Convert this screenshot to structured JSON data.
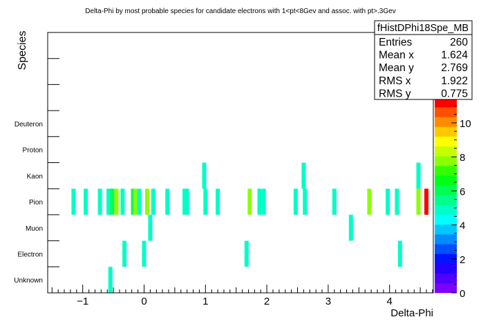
{
  "chart_data": {
    "type": "heatmap",
    "title": "Delta-Phi by most probable species for candidate electrons with 1<pt<8Gev and assoc. with pt>.3Gev",
    "xlabel": "Delta-Phi",
    "ylabel": "Species",
    "xlim": [
      -1.5708,
      4.7124
    ],
    "x_ticks": [
      -1,
      0,
      1,
      2,
      3,
      4
    ],
    "x_tick_labels": [
      "−1",
      "0",
      "1",
      "2",
      "3",
      "4"
    ],
    "categories": [
      "Unknown",
      "Electron",
      "Muon",
      "Pion",
      "Kaon",
      "Proton",
      "Deuteron",
      "",
      "",
      ""
    ],
    "z_range": [
      0,
      11.5
    ],
    "z_ticks": [
      0,
      2,
      4,
      6,
      8,
      10
    ],
    "cells": [
      {
        "x": -1.15,
        "y": "Pion",
        "z": 5
      },
      {
        "x": -0.95,
        "y": "Pion",
        "z": 5
      },
      {
        "x": -0.72,
        "y": "Pion",
        "z": 5
      },
      {
        "x": -0.58,
        "y": "Pion",
        "z": 5
      },
      {
        "x": -0.52,
        "y": "Pion",
        "z": 6
      },
      {
        "x": -0.45,
        "y": "Pion",
        "z": 8
      },
      {
        "x": -0.35,
        "y": "Pion",
        "z": 5
      },
      {
        "x": -0.18,
        "y": "Pion",
        "z": 6
      },
      {
        "x": -0.14,
        "y": "Pion",
        "z": 8
      },
      {
        "x": -0.08,
        "y": "Pion",
        "z": 5
      },
      {
        "x": 0.05,
        "y": "Pion",
        "z": 8
      },
      {
        "x": 0.15,
        "y": "Pion",
        "z": 5
      },
      {
        "x": 0.38,
        "y": "Pion",
        "z": 5
      },
      {
        "x": 0.66,
        "y": "Pion",
        "z": 5
      },
      {
        "x": 0.7,
        "y": "Pion",
        "z": 5
      },
      {
        "x": 1.0,
        "y": "Pion",
        "z": 5
      },
      {
        "x": 1.2,
        "y": "Pion",
        "z": 5
      },
      {
        "x": 1.72,
        "y": "Pion",
        "z": 8
      },
      {
        "x": 1.88,
        "y": "Pion",
        "z": 5
      },
      {
        "x": 1.95,
        "y": "Pion",
        "z": 5
      },
      {
        "x": 2.47,
        "y": "Pion",
        "z": 5
      },
      {
        "x": 2.62,
        "y": "Pion",
        "z": 5
      },
      {
        "x": 3.1,
        "y": "Pion",
        "z": 5
      },
      {
        "x": 3.67,
        "y": "Pion",
        "z": 8
      },
      {
        "x": 3.97,
        "y": "Pion",
        "z": 5
      },
      {
        "x": 4.12,
        "y": "Pion",
        "z": 5
      },
      {
        "x": 4.47,
        "y": "Pion",
        "z": 8
      },
      {
        "x": 4.6,
        "y": "Pion",
        "z": 11
      },
      {
        "x": 0.98,
        "y": "Kaon",
        "z": 5
      },
      {
        "x": 2.6,
        "y": "Kaon",
        "z": 5
      },
      {
        "x": 4.47,
        "y": "Kaon",
        "z": 5
      },
      {
        "x": 0.1,
        "y": "Muon",
        "z": 5
      },
      {
        "x": 3.37,
        "y": "Muon",
        "z": 5
      },
      {
        "x": -0.32,
        "y": "Electron",
        "z": 5
      },
      {
        "x": 0.0,
        "y": "Electron",
        "z": 5
      },
      {
        "x": 1.67,
        "y": "Electron",
        "z": 5
      },
      {
        "x": 4.17,
        "y": "Electron",
        "z": 5
      },
      {
        "x": -0.55,
        "y": "Unknown",
        "z": 5
      }
    ],
    "stats": {
      "name": "fHistDPhi18Spe_MB",
      "rows": [
        {
          "label": "Entries",
          "value": "260"
        },
        {
          "label": "Mean x",
          "value": "1.624"
        },
        {
          "label": "Mean y",
          "value": "2.769"
        },
        {
          "label": "RMS x",
          "value": "1.922"
        },
        {
          "label": "RMS y",
          "value": "0.775"
        }
      ]
    },
    "colors": {
      "palette": [
        "#7a00ff",
        "#4f00ff",
        "#2400ff",
        "#0014ff",
        "#0050ff",
        "#008cff",
        "#00c8ff",
        "#00ffff",
        "#00ffc8",
        "#00ff8c",
        "#00ff50",
        "#00ff14",
        "#32ff00",
        "#8cff00",
        "#c8ff00",
        "#ffff00",
        "#ffc800",
        "#ff8c00",
        "#ff5000",
        "#ff0000"
      ],
      "frame": "#000000"
    }
  }
}
